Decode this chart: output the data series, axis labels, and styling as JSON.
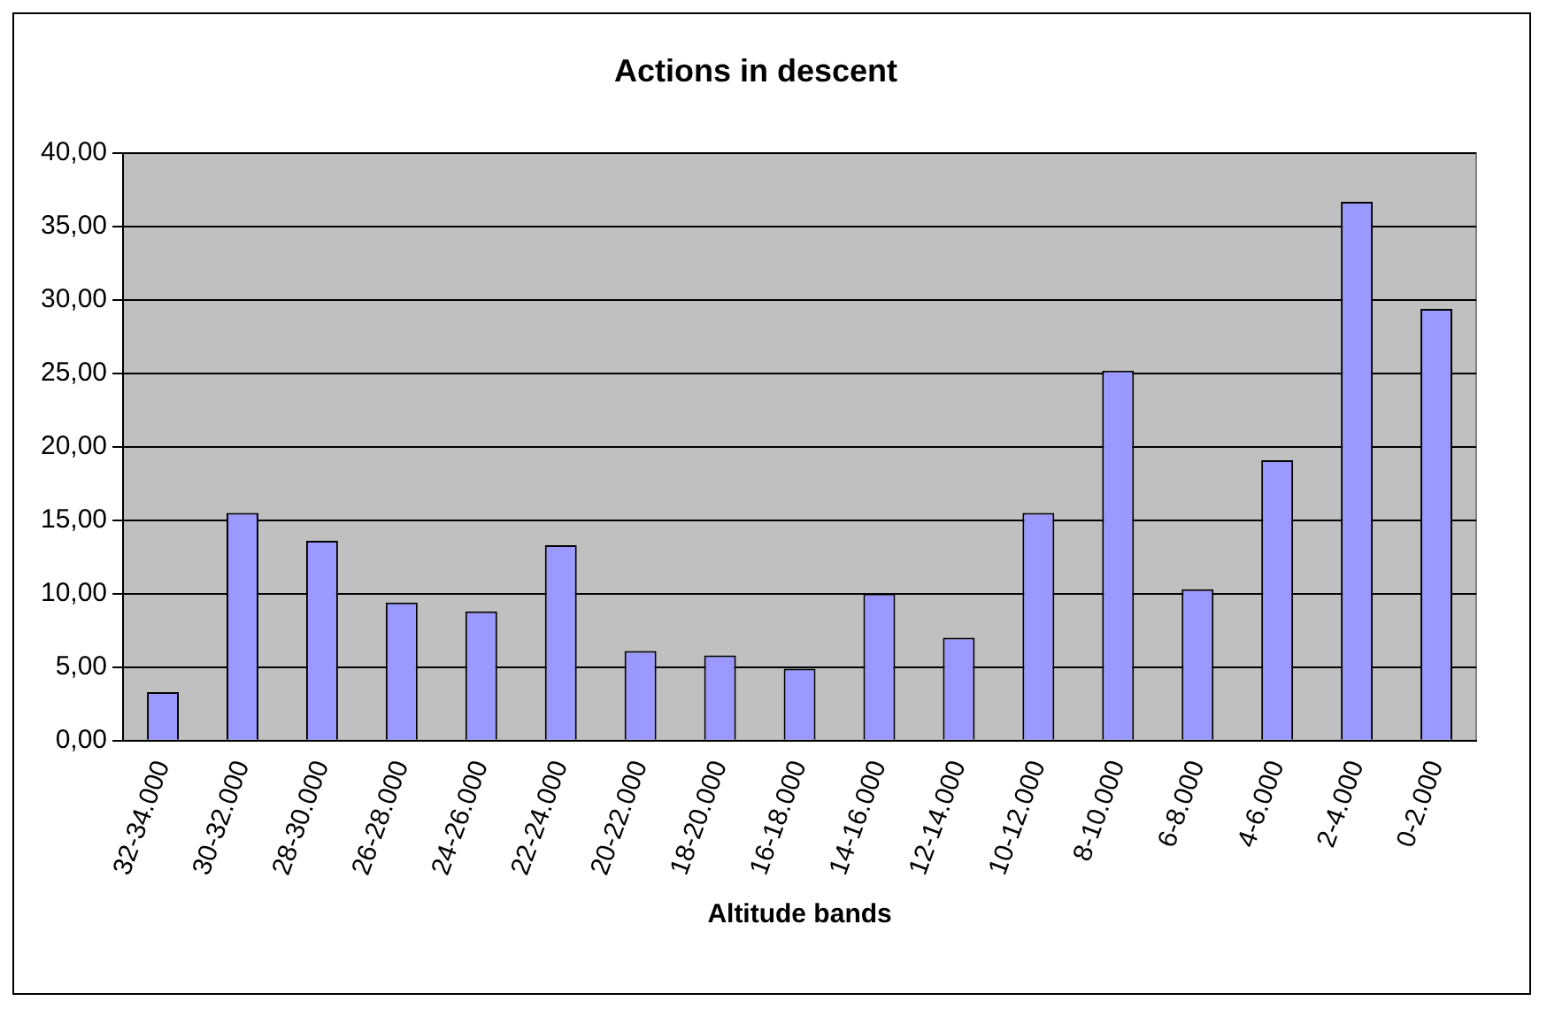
{
  "chart_data": {
    "type": "bar",
    "title": "Actions in descent",
    "xlabel": "Altitude bands",
    "categories": [
      "32-34.000",
      "30-32.000",
      "28-30.000",
      "26-28.000",
      "24-26.000",
      "22-24.000",
      "20-22.000",
      "18-20.000",
      "16-18.000",
      "14-16.000",
      "12-14.000",
      "10-12.000",
      "8-10.000",
      "6-8.000",
      "4-6.000",
      "2-4.000",
      "0-2.000"
    ],
    "values": [
      3.3,
      15.5,
      13.6,
      9.4,
      8.8,
      13.3,
      6.1,
      5.8,
      4.9,
      10.0,
      7.0,
      15.5,
      25.2,
      10.3,
      19.1,
      36.7,
      29.4
    ],
    "color": "#9999ff",
    "ylim": [
      0,
      40
    ],
    "yticks": [
      {
        "value": 0,
        "label": "0,00"
      },
      {
        "value": 5,
        "label": "5,00"
      },
      {
        "value": 10,
        "label": "10,00"
      },
      {
        "value": 15,
        "label": "15,00"
      },
      {
        "value": 20,
        "label": "20,00"
      },
      {
        "value": 25,
        "label": "25,00"
      },
      {
        "value": 30,
        "label": "30,00"
      },
      {
        "value": 35,
        "label": "35,00"
      },
      {
        "value": 40,
        "label": "40,00"
      }
    ],
    "grid": "y",
    "legend": false
  }
}
